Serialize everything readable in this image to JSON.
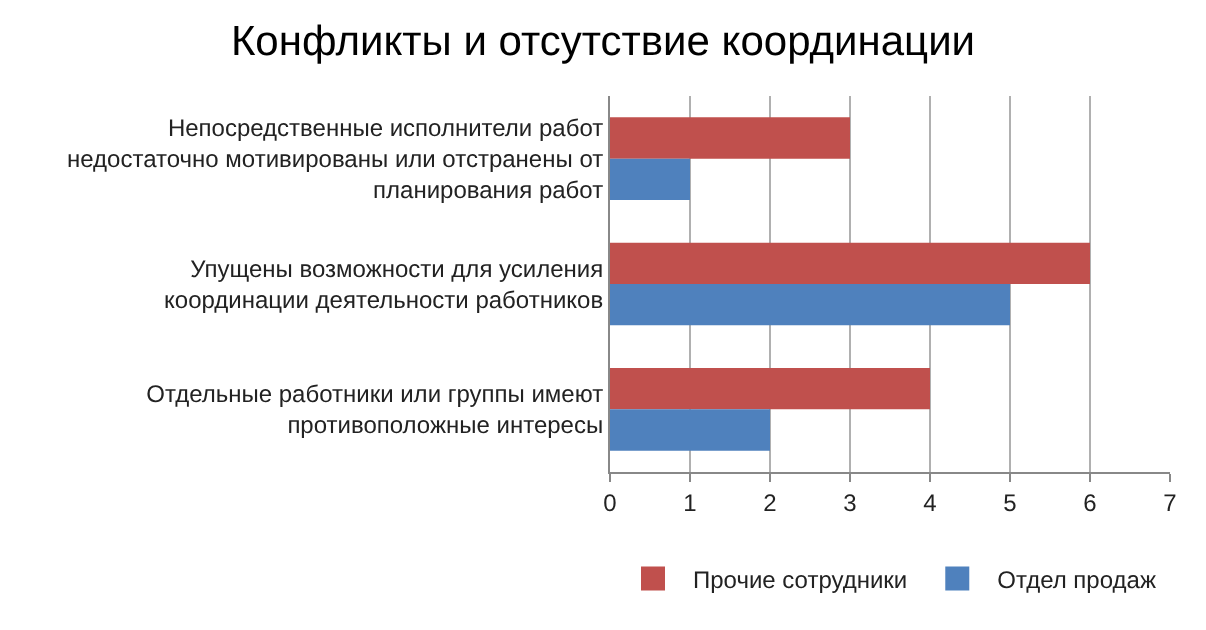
{
  "chart_data": {
    "type": "bar",
    "orientation": "horizontal",
    "title": "Конфликты и отсутствие координации",
    "categories": [
      "Непосредственные исполнители работ\nнедостаточно мотивированы или отстранены от\nпланирования работ",
      "Упущены возможности для усиления\nкоординации деятельности работников",
      "Отдельные работники или группы имеют\nпротивоположные интересы"
    ],
    "series": [
      {
        "name": "Прочие сотрудники",
        "color": "#c0504d",
        "values": [
          3,
          6,
          4
        ]
      },
      {
        "name": "Отдел продаж",
        "color": "#4f81bd",
        "values": [
          1,
          5,
          2
        ]
      }
    ],
    "xlim": [
      0,
      7
    ],
    "xticks": [
      0,
      1,
      2,
      3,
      4,
      5,
      6,
      7
    ],
    "grid": "x",
    "legend": "bottom"
  }
}
